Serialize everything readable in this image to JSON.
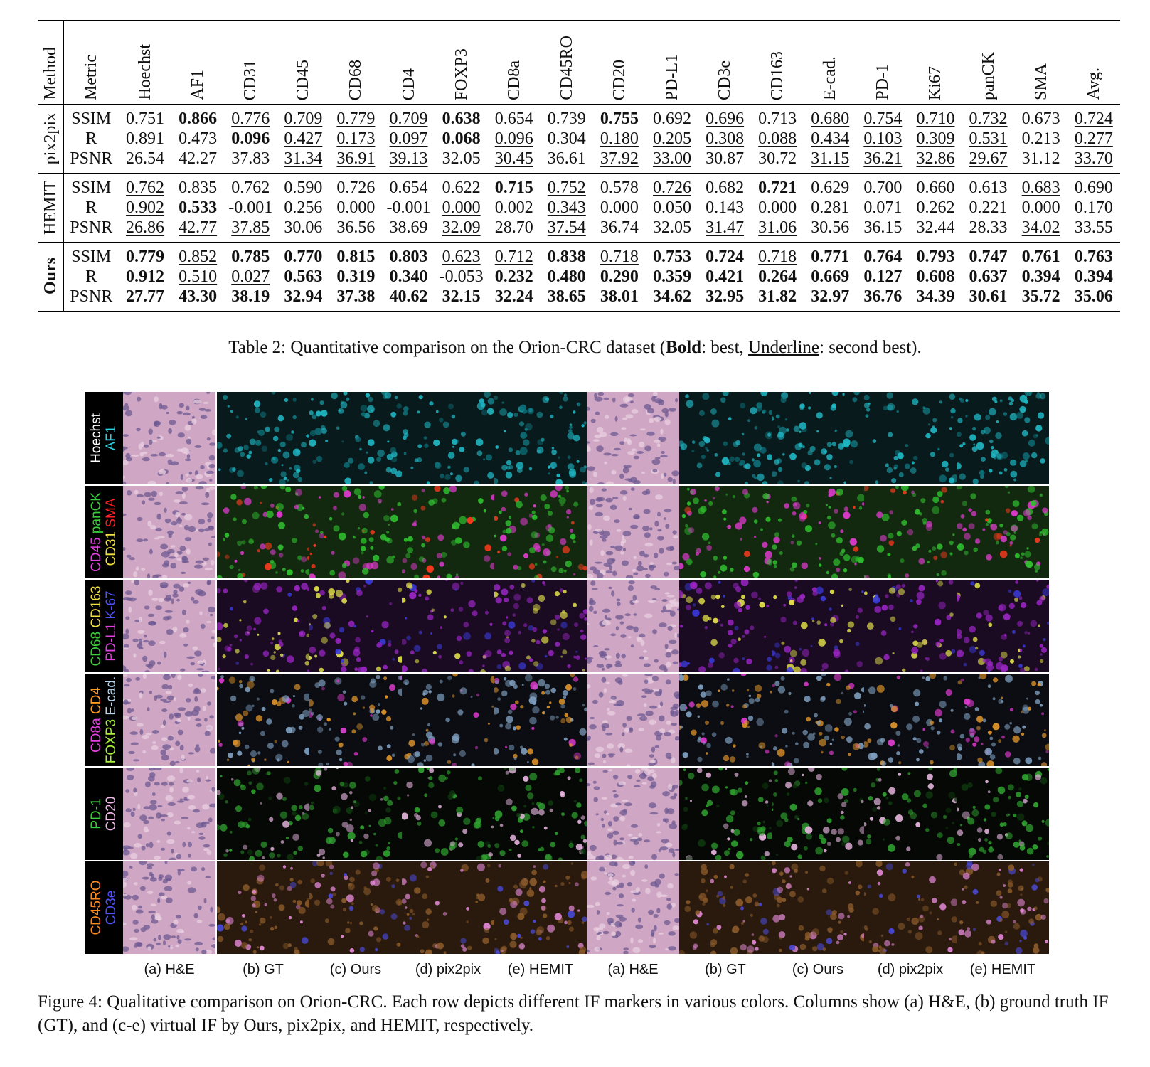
{
  "table": {
    "header_method": "Method",
    "header_metric": "Metric",
    "columns": [
      "Hoechst",
      "AF1",
      "CD31",
      "CD45",
      "CD68",
      "CD4",
      "FOXP3",
      "CD8a",
      "CD45RO",
      "CD20",
      "PD-L1",
      "CD3e",
      "CD163",
      "E-cad.",
      "PD-1",
      "Ki67",
      "panCK",
      "SMA",
      "Avg."
    ],
    "groups": [
      {
        "method": "pix2pix",
        "method_bold": false,
        "rows": [
          {
            "metric": "SSIM",
            "values": [
              "0.751",
              "0.866",
              "0.776",
              "0.709",
              "0.779",
              "0.709",
              "0.638",
              "0.654",
              "0.739",
              "0.755",
              "0.692",
              "0.696",
              "0.713",
              "0.680",
              "0.754",
              "0.710",
              "0.732",
              "0.673",
              "0.724"
            ],
            "style": [
              "",
              "b",
              "u",
              "u",
              "u",
              "u",
              "b",
              "",
              "",
              "b",
              "",
              "u",
              "",
              "u",
              "u",
              "u",
              "u",
              "",
              "u"
            ]
          },
          {
            "metric": "R",
            "values": [
              "0.891",
              "0.473",
              "0.096",
              "0.427",
              "0.173",
              "0.097",
              "0.068",
              "0.096",
              "0.304",
              "0.180",
              "0.205",
              "0.308",
              "0.088",
              "0.434",
              "0.103",
              "0.309",
              "0.531",
              "0.213",
              "0.277"
            ],
            "style": [
              "",
              "",
              "b",
              "u",
              "u",
              "u",
              "b",
              "u",
              "",
              "u",
              "u",
              "u",
              "u",
              "u",
              "u",
              "u",
              "u",
              "",
              "u"
            ]
          },
          {
            "metric": "PSNR",
            "values": [
              "26.54",
              "42.27",
              "37.83",
              "31.34",
              "36.91",
              "39.13",
              "32.05",
              "30.45",
              "36.61",
              "37.92",
              "33.00",
              "30.87",
              "30.72",
              "31.15",
              "36.21",
              "32.86",
              "29.67",
              "31.12",
              "33.70"
            ],
            "style": [
              "",
              "",
              "",
              "u",
              "u",
              "u",
              "",
              "u",
              "",
              "u",
              "u",
              "",
              "",
              "u",
              "u",
              "u",
              "u",
              "",
              "u"
            ]
          }
        ]
      },
      {
        "method": "HEMIT",
        "method_bold": false,
        "rows": [
          {
            "metric": "SSIM",
            "values": [
              "0.762",
              "0.835",
              "0.762",
              "0.590",
              "0.726",
              "0.654",
              "0.622",
              "0.715",
              "0.752",
              "0.578",
              "0.726",
              "0.682",
              "0.721",
              "0.629",
              "0.700",
              "0.660",
              "0.613",
              "0.683",
              "0.690"
            ],
            "style": [
              "u",
              "",
              "",
              "",
              "",
              "",
              "",
              "b",
              "u",
              "",
              "u",
              "",
              "b",
              "",
              "",
              "",
              "",
              "u",
              ""
            ]
          },
          {
            "metric": "R",
            "values": [
              "0.902",
              "0.533",
              "-0.001",
              "0.256",
              "0.000",
              "-0.001",
              "0.000",
              "0.002",
              "0.343",
              "0.000",
              "0.050",
              "0.143",
              "0.000",
              "0.281",
              "0.071",
              "0.262",
              "0.221",
              "0.000",
              "0.170"
            ],
            "style": [
              "u",
              "b",
              "",
              "",
              "",
              "",
              "u",
              "",
              "u",
              "",
              "",
              "",
              "",
              "",
              "",
              "",
              "",
              "",
              ""
            ]
          },
          {
            "metric": "PSNR",
            "values": [
              "26.86",
              "42.77",
              "37.85",
              "30.06",
              "36.56",
              "38.69",
              "32.09",
              "28.70",
              "37.54",
              "36.74",
              "32.05",
              "31.47",
              "31.06",
              "30.56",
              "36.15",
              "32.44",
              "28.33",
              "34.02",
              "33.55"
            ],
            "style": [
              "u",
              "u",
              "u",
              "",
              "",
              "",
              "u",
              "",
              "u",
              "",
              "",
              "u",
              "u",
              "",
              "",
              "",
              "",
              "u",
              ""
            ]
          }
        ]
      },
      {
        "method": "Ours",
        "method_bold": true,
        "rows": [
          {
            "metric": "SSIM",
            "values": [
              "0.779",
              "0.852",
              "0.785",
              "0.770",
              "0.815",
              "0.803",
              "0.623",
              "0.712",
              "0.838",
              "0.718",
              "0.753",
              "0.724",
              "0.718",
              "0.771",
              "0.764",
              "0.793",
              "0.747",
              "0.761",
              "0.763"
            ],
            "style": [
              "b",
              "u",
              "b",
              "b",
              "b",
              "b",
              "u",
              "u",
              "b",
              "u",
              "b",
              "b",
              "u",
              "b",
              "b",
              "b",
              "b",
              "b",
              "b"
            ]
          },
          {
            "metric": "R",
            "values": [
              "0.912",
              "0.510",
              "0.027",
              "0.563",
              "0.319",
              "0.340",
              "-0.053",
              "0.232",
              "0.480",
              "0.290",
              "0.359",
              "0.421",
              "0.264",
              "0.669",
              "0.127",
              "0.608",
              "0.637",
              "0.394",
              "0.394"
            ],
            "style": [
              "b",
              "u",
              "u",
              "b",
              "b",
              "b",
              "",
              "b",
              "b",
              "b",
              "b",
              "b",
              "b",
              "b",
              "b",
              "b",
              "b",
              "b",
              "b"
            ]
          },
          {
            "metric": "PSNR",
            "values": [
              "27.77",
              "43.30",
              "38.19",
              "32.94",
              "37.38",
              "40.62",
              "32.15",
              "32.24",
              "38.65",
              "38.01",
              "34.62",
              "32.95",
              "31.82",
              "32.97",
              "36.76",
              "34.39",
              "30.61",
              "35.72",
              "35.06"
            ],
            "style": [
              "b",
              "b",
              "b",
              "b",
              "b",
              "b",
              "b",
              "b",
              "b",
              "b",
              "b",
              "b",
              "b",
              "b",
              "b",
              "b",
              "b",
              "b",
              "b"
            ]
          }
        ]
      }
    ],
    "caption": {
      "prefix": "Table 2: Quantitative comparison on the Orion-CRC dataset (",
      "bold": "Bold",
      "mid": ": best, ",
      "underline": "Underline",
      "suffix": ": second best)."
    }
  },
  "figure": {
    "row_labels": [
      [
        {
          "text": "Hoechst",
          "color": "#ffffff"
        },
        {
          "text": "AF1",
          "color": "#2ad4e6"
        }
      ],
      [
        {
          "text": "CD45",
          "color": "#e040e0",
          "text2": "panCK",
          "color2": "#3ccf3c"
        },
        {
          "text": "CD31",
          "color": "#f0e040",
          "text2": "SMA",
          "color2": "#ff2020"
        }
      ],
      [
        {
          "text": "CD68",
          "color": "#3ccf3c",
          "text2": "CD163",
          "color2": "#f0e040"
        },
        {
          "text": "PD-L1",
          "color": "#e040e0",
          "text2": "K‌-67",
          "color2": "#5050ff"
        }
      ],
      [
        {
          "text": "CD8a",
          "color": "#e040e0",
          "text2": "CD4",
          "color2": "#ff9a20"
        },
        {
          "text": "FOXP3",
          "color": "#a6ef3a",
          "text2": "E-cad.",
          "color2": "#b8d4ec"
        }
      ],
      [
        {
          "text": "PD-1",
          "color": "#3ccf3c"
        },
        {
          "text": "CD20",
          "color": "#f0b8e8"
        }
      ],
      [
        {
          "text": "CD45RO",
          "color": "#ff8a20"
        },
        {
          "text": "CD3e",
          "color": "#5050ff"
        }
      ]
    ],
    "column_labels": [
      "(a) H&E",
      "(b) GT",
      "(c) Ours",
      "(d) pix2pix",
      "(e) HEMIT",
      "(a) H&E",
      "(b) GT",
      "(c) Ours",
      "(d) pix2pix",
      "(e) HEMIT"
    ],
    "caption": "Figure 4: Qualitative comparison on Orion-CRC. Each row depicts different IF markers in various colors. Columns show (a) H&E, (b) ground truth IF (GT), and (c-e) virtual IF by Ours, pix2pix, and HEMIT, respectively.",
    "row_colors": {
      "he": "#cfa6c4",
      "if": [
        {
          "bg": "#081a1c",
          "c1": "#1fb7c4",
          "c2": "#0e6f78"
        },
        {
          "bg": "#13290f",
          "c1": "#2fbf2f",
          "c2": "#e13ad0",
          "c3": "#ff3a1e"
        },
        {
          "bg": "#1a0a22",
          "c1": "#9a25c4",
          "c2": "#e4e44a",
          "c3": "#3a3ad8"
        },
        {
          "bg": "#0b0d12",
          "c1": "#7f9fbf",
          "c2": "#e2962a",
          "c3": "#e13ad0"
        },
        {
          "bg": "#050805",
          "c1": "#2fa22f",
          "c2": "#e8b6e0",
          "c3": "#0f3a0f"
        },
        {
          "bg": "#2a1a0e",
          "c1": "#8a5a2a",
          "c2": "#e48ad8",
          "c3": "#4a4ad8"
        }
      ]
    }
  }
}
